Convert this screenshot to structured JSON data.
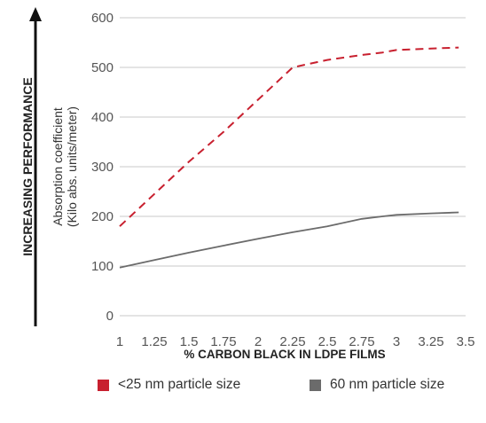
{
  "chart_data": {
    "type": "line",
    "title": "",
    "side_label": "INCREASING PERFORMANCE",
    "ylabel_lines": [
      "Absorption coefficient",
      "(Kilo abs. units/meter)"
    ],
    "xlabel": "% CARBON BLACK IN LDPE FILMS",
    "x_ticks": [
      1,
      1.25,
      1.5,
      1.75,
      2,
      2.25,
      2.5,
      2.75,
      3,
      3.25,
      3.5
    ],
    "x_tick_labels": [
      "1",
      "1.25",
      "1.5",
      "1.75",
      "2",
      "2.25",
      "2.5",
      "2.75",
      "3",
      "3.25",
      "3.5"
    ],
    "xlim": [
      1,
      3.5
    ],
    "y_ticks": [
      0,
      100,
      200,
      300,
      400,
      500,
      600
    ],
    "y_tick_labels": [
      "0",
      "100",
      "200",
      "300",
      "400",
      "500",
      "600"
    ],
    "ylim": [
      0,
      600
    ],
    "grid": "horizontal",
    "legend_position": "bottom",
    "series": [
      {
        "name": "<25 nm particle size",
        "color": "#c8202f",
        "dash": "dashed",
        "x": [
          1,
          1.25,
          1.5,
          1.75,
          2,
          2.25,
          2.5,
          2.75,
          2.9,
          3,
          3.25,
          3.45
        ],
        "values": [
          180,
          245,
          310,
          370,
          435,
          500,
          515,
          525,
          530,
          535,
          538,
          540
        ]
      },
      {
        "name": "60 nm particle size",
        "color": "#6b6b6b",
        "dash": "solid",
        "x": [
          1,
          1.25,
          1.5,
          1.75,
          2,
          2.25,
          2.5,
          2.75,
          2.9,
          3,
          3.25,
          3.45
        ],
        "values": [
          97,
          112,
          127,
          141,
          155,
          168,
          180,
          195,
          200,
          203,
          206,
          208
        ]
      }
    ]
  }
}
